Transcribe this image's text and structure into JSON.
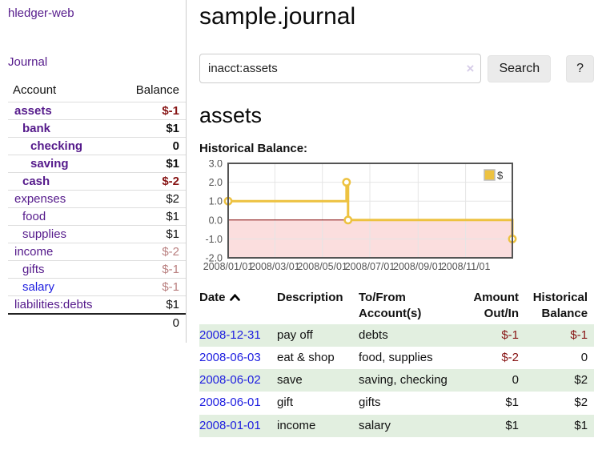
{
  "colors": {
    "link_purple": "#551A8B",
    "link_blue": "#1d1de0",
    "negative_dark": "#871414",
    "negative_muted": "#b97f7f",
    "row_stripe_green": "#e2efe0",
    "series_gold": "#edc240",
    "zero_line": "#800000",
    "negative_region": "#fbdede",
    "grid_line": "#e5e5e5",
    "plot_border": "#545454"
  },
  "sidebar": {
    "brand": "hledger-web",
    "journal_link": "Journal",
    "accounts": {
      "col_account": "Account",
      "col_balance": "Balance",
      "rows": [
        {
          "name": "assets",
          "indent": 0,
          "bold": true,
          "balance": "$-1",
          "neg": "dark"
        },
        {
          "name": "bank",
          "indent": 1,
          "bold": true,
          "balance": "$1",
          "neg": "none"
        },
        {
          "name": "checking",
          "indent": 2,
          "bold": true,
          "balance": "0",
          "neg": "none"
        },
        {
          "name": "saving",
          "indent": 2,
          "bold": true,
          "balance": "$1",
          "neg": "none"
        },
        {
          "name": "cash",
          "indent": 1,
          "bold": true,
          "balance": "$-2",
          "neg": "dark"
        },
        {
          "name": "expenses",
          "indent": 0,
          "bold": false,
          "balance": "$2",
          "neg": "none"
        },
        {
          "name": "food",
          "indent": 1,
          "bold": false,
          "balance": "$1",
          "neg": "none"
        },
        {
          "name": "supplies",
          "indent": 1,
          "bold": false,
          "balance": "$1",
          "neg": "none"
        },
        {
          "name": "income",
          "indent": 0,
          "bold": false,
          "balance": "$-2",
          "neg": "muted"
        },
        {
          "name": "gifts",
          "indent": 1,
          "bold": false,
          "balance": "$-1",
          "neg": "muted"
        },
        {
          "name": "salary",
          "indent": 1,
          "bold": false,
          "balance": "$-1",
          "neg": "muted",
          "unvisited": true
        },
        {
          "name": "liabilities:debts",
          "indent": 0,
          "bold": false,
          "balance": "$1",
          "neg": "none"
        }
      ],
      "total": "0"
    }
  },
  "header": {
    "title": "sample.journal"
  },
  "search": {
    "value": "inacct:assets",
    "clear_icon": "×",
    "search_button": "Search",
    "help_button": "?"
  },
  "account_page": {
    "heading": "assets",
    "section_label": "Historical Balance:"
  },
  "chart_data": {
    "type": "line",
    "step": true,
    "title": "Historical Balance:",
    "series": [
      {
        "name": "$",
        "color": "#edc240",
        "points": [
          [
            "2008-01-01",
            1
          ],
          [
            "2008-06-01",
            2
          ],
          [
            "2008-06-03",
            0
          ],
          [
            "2008-12-31",
            -1
          ]
        ]
      }
    ],
    "xlim": [
      "2008-01-01",
      "2008-12-31"
    ],
    "ylim": [
      -2,
      3
    ],
    "yticks": [
      3,
      2,
      1,
      0,
      -1,
      -2
    ],
    "xticks": [
      [
        "2008-01-01",
        "2008/01/01"
      ],
      [
        "2008-03-01",
        "2008/03/01"
      ],
      [
        "2008-05-01",
        "2008/05/01"
      ],
      [
        "2008-07-01",
        "2008/07/01"
      ],
      [
        "2008-09-01",
        "2008/09/01"
      ],
      [
        "2008-11-01",
        "2008/11/01"
      ]
    ],
    "grid": true,
    "legend_position": "top-right",
    "negative_region_shaded": true
  },
  "register": {
    "headers": [
      {
        "label": "Date",
        "align": "left",
        "sorted": "asc"
      },
      {
        "label": "Description",
        "align": "left"
      },
      {
        "label": "To/From Account(s)",
        "align": "left"
      },
      {
        "label": "Amount Out/In",
        "align": "right"
      },
      {
        "label": "Historical Balance",
        "align": "right"
      }
    ],
    "rows": [
      {
        "date": "2008-12-31",
        "description": "pay off",
        "accounts": "debts",
        "amount": "$-1",
        "amount_neg": true,
        "balance": "$-1",
        "balance_neg": true
      },
      {
        "date": "2008-06-03",
        "description": "eat & shop",
        "accounts": "food, supplies",
        "amount": "$-2",
        "amount_neg": true,
        "balance": "0",
        "balance_neg": false
      },
      {
        "date": "2008-06-02",
        "description": "save",
        "accounts": "saving, checking",
        "amount": "0",
        "amount_neg": false,
        "balance": "$2",
        "balance_neg": false
      },
      {
        "date": "2008-06-01",
        "description": "gift",
        "accounts": "gifts",
        "amount": "$1",
        "amount_neg": false,
        "balance": "$2",
        "balance_neg": false
      },
      {
        "date": "2008-01-01",
        "description": "income",
        "accounts": "salary",
        "amount": "$1",
        "amount_neg": false,
        "balance": "$1",
        "balance_neg": false
      }
    ]
  }
}
